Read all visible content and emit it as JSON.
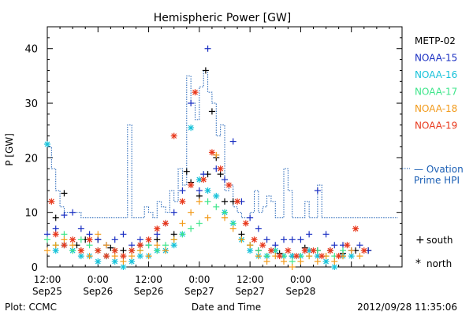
{
  "chart_data": {
    "type": "scatter",
    "title": "Hemispheric Power [GW]",
    "ylabel": "P [GW]",
    "xlabel": "Date and Time",
    "x_unit": "hours since 2012-09-25 12:00",
    "xlim": [
      0,
      84
    ],
    "ylim": [
      0,
      44
    ],
    "yticks": [
      0,
      10,
      20,
      30,
      40
    ],
    "xtick_hours": [
      0,
      12,
      24,
      36,
      48,
      60,
      72
    ],
    "xtick_labels": [
      [
        "12:00",
        "Sep25"
      ],
      [
        "0:00",
        "Sep26"
      ],
      [
        "12:00",
        "Sep26"
      ],
      [
        "0:00",
        "Sep27"
      ],
      [
        "12:00",
        "Sep27"
      ],
      [
        "0:00",
        "Sep28"
      ],
      [
        "",
        ""
      ]
    ],
    "legend": [
      {
        "name": "METP-02",
        "color": "#000000"
      },
      {
        "name": "NOAA-15",
        "color": "#1a2fc2"
      },
      {
        "name": "NOAA-16",
        "color": "#17c2d9"
      },
      {
        "name": "NOAA-17",
        "color": "#3ee58a"
      },
      {
        "name": "NOAA-18",
        "color": "#f29a1a"
      },
      {
        "name": "NOAA-19",
        "color": "#e8391d"
      }
    ],
    "ovation": {
      "name": "— Ovation Prime HPI",
      "label_line1": "— Ovation",
      "label_line2": "Prime HPI",
      "color": "#1b5fb5",
      "points": [
        [
          0,
          22
        ],
        [
          1,
          18
        ],
        [
          2,
          14
        ],
        [
          3,
          11
        ],
        [
          4,
          10
        ],
        [
          5,
          10
        ],
        [
          6,
          10
        ],
        [
          7,
          10
        ],
        [
          8,
          9
        ],
        [
          9,
          9
        ],
        [
          10,
          9
        ],
        [
          11,
          9
        ],
        [
          12,
          9
        ],
        [
          13,
          9
        ],
        [
          14,
          9
        ],
        [
          15,
          9
        ],
        [
          16,
          9
        ],
        [
          17,
          9
        ],
        [
          18,
          9
        ],
        [
          19,
          26
        ],
        [
          20,
          9
        ],
        [
          21,
          9
        ],
        [
          22,
          9
        ],
        [
          23,
          11
        ],
        [
          24,
          10
        ],
        [
          25,
          9
        ],
        [
          26,
          12
        ],
        [
          27,
          11
        ],
        [
          28,
          10
        ],
        [
          29,
          14
        ],
        [
          30,
          12
        ],
        [
          31,
          18
        ],
        [
          32,
          15
        ],
        [
          33,
          35
        ],
        [
          34,
          30
        ],
        [
          35,
          27
        ],
        [
          36,
          33
        ],
        [
          37,
          36
        ],
        [
          38,
          32
        ],
        [
          39,
          30
        ],
        [
          40,
          24
        ],
        [
          41,
          26
        ],
        [
          42,
          14
        ],
        [
          43,
          15
        ],
        [
          44,
          11
        ],
        [
          45,
          10
        ],
        [
          46,
          9
        ],
        [
          47,
          9
        ],
        [
          48,
          10
        ],
        [
          49,
          14
        ],
        [
          50,
          10
        ],
        [
          51,
          11
        ],
        [
          52,
          13
        ],
        [
          53,
          12
        ],
        [
          54,
          9
        ],
        [
          55,
          9
        ],
        [
          56,
          18
        ],
        [
          57,
          14
        ],
        [
          58,
          9
        ],
        [
          59,
          9
        ],
        [
          60,
          9
        ],
        [
          61,
          12
        ],
        [
          62,
          9
        ],
        [
          63,
          9
        ],
        [
          64,
          15
        ],
        [
          65,
          9
        ],
        [
          66,
          9
        ],
        [
          67,
          9
        ],
        [
          68,
          9
        ],
        [
          69,
          9
        ],
        [
          70,
          9
        ],
        [
          71,
          9
        ],
        [
          72,
          9
        ],
        [
          73,
          9
        ],
        [
          74,
          9
        ],
        [
          75,
          9
        ],
        [
          76,
          9
        ],
        [
          77,
          9
        ],
        [
          78,
          9
        ],
        [
          79,
          9
        ],
        [
          80,
          9
        ],
        [
          81,
          9
        ],
        [
          82,
          9
        ]
      ]
    },
    "series": [
      {
        "name": "METP-02",
        "color": "#000000",
        "hemisphere": "south",
        "points": [
          [
            2,
            9
          ],
          [
            4,
            13.5
          ],
          [
            7,
            4
          ],
          [
            9,
            5
          ],
          [
            12,
            5
          ],
          [
            15,
            3.5
          ],
          [
            18,
            3
          ],
          [
            22,
            4
          ],
          [
            26,
            5
          ],
          [
            30,
            6
          ],
          [
            33,
            17.5
          ],
          [
            34,
            15.5
          ],
          [
            36,
            13
          ],
          [
            37.5,
            36
          ],
          [
            38,
            17
          ],
          [
            39,
            28.5
          ],
          [
            40,
            20
          ],
          [
            41,
            17
          ],
          [
            42,
            12
          ],
          [
            44,
            12
          ],
          [
            46,
            6
          ],
          [
            48,
            4
          ],
          [
            50,
            3
          ],
          [
            52,
            2
          ],
          [
            55,
            2.5
          ],
          [
            58,
            2
          ],
          [
            61,
            3.5
          ],
          [
            64,
            3
          ],
          [
            67,
            3
          ],
          [
            70,
            2.5
          ],
          [
            73,
            3
          ],
          [
            76,
            3
          ]
        ]
      },
      {
        "name": "NOAA-15",
        "color": "#1a2fc2",
        "hemisphere": "south",
        "points": [
          [
            0,
            6
          ],
          [
            2,
            7
          ],
          [
            4,
            9.5
          ],
          [
            6,
            10
          ],
          [
            8,
            7
          ],
          [
            10,
            6
          ],
          [
            12,
            5
          ],
          [
            14,
            4
          ],
          [
            16,
            5
          ],
          [
            18,
            6
          ],
          [
            20,
            4
          ],
          [
            22,
            5
          ],
          [
            24,
            4
          ],
          [
            26,
            6
          ],
          [
            28,
            8
          ],
          [
            30,
            10
          ],
          [
            32,
            14
          ],
          [
            34,
            30
          ],
          [
            36,
            14
          ],
          [
            37,
            17
          ],
          [
            38,
            40
          ],
          [
            40,
            18
          ],
          [
            42,
            16
          ],
          [
            44,
            23
          ],
          [
            46,
            12
          ],
          [
            48,
            9
          ],
          [
            50,
            7
          ],
          [
            52,
            5
          ],
          [
            54,
            4
          ],
          [
            56,
            5
          ],
          [
            58,
            5
          ],
          [
            60,
            5
          ],
          [
            62,
            6
          ],
          [
            64,
            14
          ],
          [
            66,
            6
          ],
          [
            68,
            4
          ],
          [
            70,
            4
          ],
          [
            72,
            3
          ],
          [
            74,
            4
          ],
          [
            76,
            3
          ]
        ]
      },
      {
        "name": "NOAA-16",
        "color": "#17c2d9",
        "hemisphere": "north",
        "points": [
          [
            0,
            22.5
          ],
          [
            2,
            3
          ],
          [
            4,
            4
          ],
          [
            6,
            3
          ],
          [
            8,
            2
          ],
          [
            10,
            2
          ],
          [
            12,
            1
          ],
          [
            14,
            2
          ],
          [
            16,
            1
          ],
          [
            18,
            0
          ],
          [
            20,
            1
          ],
          [
            22,
            2
          ],
          [
            24,
            2
          ],
          [
            26,
            3
          ],
          [
            28,
            3
          ],
          [
            30,
            4
          ],
          [
            32,
            6
          ],
          [
            34,
            25.5
          ],
          [
            36,
            16
          ],
          [
            38,
            14
          ],
          [
            40,
            13
          ],
          [
            42,
            10
          ],
          [
            44,
            8
          ],
          [
            46,
            5
          ],
          [
            48,
            3
          ],
          [
            50,
            2
          ],
          [
            52,
            2
          ],
          [
            54,
            3
          ],
          [
            56,
            2
          ],
          [
            58,
            2
          ],
          [
            60,
            2
          ],
          [
            62,
            3
          ],
          [
            64,
            2
          ],
          [
            66,
            1
          ],
          [
            68,
            0
          ],
          [
            70,
            2
          ],
          [
            72,
            2
          ]
        ]
      },
      {
        "name": "NOAA-17",
        "color": "#3ee58a",
        "hemisphere": "south",
        "points": [
          [
            0,
            5
          ],
          [
            2,
            4
          ],
          [
            4,
            6
          ],
          [
            6,
            3
          ],
          [
            8,
            5
          ],
          [
            10,
            4
          ],
          [
            12,
            3
          ],
          [
            14,
            2
          ],
          [
            16,
            3
          ],
          [
            18,
            2
          ],
          [
            20,
            3
          ],
          [
            22,
            3
          ],
          [
            24,
            4
          ],
          [
            26,
            3
          ],
          [
            28,
            4
          ],
          [
            30,
            5
          ],
          [
            32,
            6
          ],
          [
            34,
            7
          ],
          [
            36,
            8
          ],
          [
            38,
            12
          ],
          [
            40,
            11
          ],
          [
            42,
            10
          ],
          [
            44,
            8
          ],
          [
            46,
            5
          ],
          [
            48,
            4
          ],
          [
            50,
            3
          ],
          [
            52,
            2
          ],
          [
            54,
            3
          ],
          [
            56,
            2
          ],
          [
            58,
            1
          ],
          [
            60,
            2
          ],
          [
            62,
            2
          ],
          [
            64,
            3
          ],
          [
            66,
            2
          ],
          [
            68,
            2
          ],
          [
            70,
            3
          ]
        ]
      },
      {
        "name": "NOAA-18",
        "color": "#f29a1a",
        "hemisphere": "south",
        "points": [
          [
            0,
            3
          ],
          [
            2,
            4
          ],
          [
            4,
            5
          ],
          [
            6,
            4
          ],
          [
            8,
            3
          ],
          [
            10,
            2
          ],
          [
            12,
            6
          ],
          [
            14,
            4
          ],
          [
            16,
            2
          ],
          [
            18,
            1
          ],
          [
            20,
            2
          ],
          [
            22,
            3
          ],
          [
            24,
            2
          ],
          [
            26,
            4
          ],
          [
            28,
            3
          ],
          [
            30,
            5
          ],
          [
            32,
            8
          ],
          [
            34,
            10
          ],
          [
            36,
            12
          ],
          [
            38,
            9
          ],
          [
            40,
            20.5
          ],
          [
            42,
            9
          ],
          [
            44,
            7
          ],
          [
            46,
            5
          ],
          [
            48,
            4
          ],
          [
            50,
            2
          ],
          [
            52,
            1
          ],
          [
            54,
            2
          ],
          [
            56,
            1
          ],
          [
            58,
            0
          ],
          [
            60,
            1
          ],
          [
            62,
            2
          ],
          [
            64,
            1
          ],
          [
            66,
            2
          ],
          [
            68,
            1
          ],
          [
            70,
            2
          ],
          [
            72,
            3
          ],
          [
            74,
            2
          ]
        ]
      },
      {
        "name": "NOAA-19",
        "color": "#e8391d",
        "hemisphere": "north",
        "points": [
          [
            1,
            12
          ],
          [
            2,
            6
          ],
          [
            4,
            4
          ],
          [
            6,
            5
          ],
          [
            8,
            3
          ],
          [
            10,
            5
          ],
          [
            12,
            3
          ],
          [
            14,
            2
          ],
          [
            16,
            3
          ],
          [
            18,
            2
          ],
          [
            20,
            3
          ],
          [
            22,
            4
          ],
          [
            24,
            5
          ],
          [
            26,
            7
          ],
          [
            28,
            8
          ],
          [
            30,
            24
          ],
          [
            32,
            12
          ],
          [
            34,
            15
          ],
          [
            35,
            32
          ],
          [
            37,
            16
          ],
          [
            39,
            21
          ],
          [
            41,
            18
          ],
          [
            43,
            15
          ],
          [
            45,
            12
          ],
          [
            47,
            8
          ],
          [
            49,
            5
          ],
          [
            51,
            4
          ],
          [
            53,
            3
          ],
          [
            55,
            2
          ],
          [
            57,
            3
          ],
          [
            59,
            2
          ],
          [
            61,
            3
          ],
          [
            63,
            3
          ],
          [
            65,
            2
          ],
          [
            67,
            3
          ],
          [
            69,
            2
          ],
          [
            71,
            4
          ],
          [
            73,
            7
          ],
          [
            75,
            3
          ]
        ]
      }
    ],
    "marker_legend": [
      {
        "symbol": "+",
        "label": "south"
      },
      {
        "symbol": "*",
        "label": "north"
      }
    ]
  },
  "footer": {
    "left": "Plot: CCMC",
    "center": "Date and Time",
    "right": "2012/09/28 11:35:06"
  }
}
